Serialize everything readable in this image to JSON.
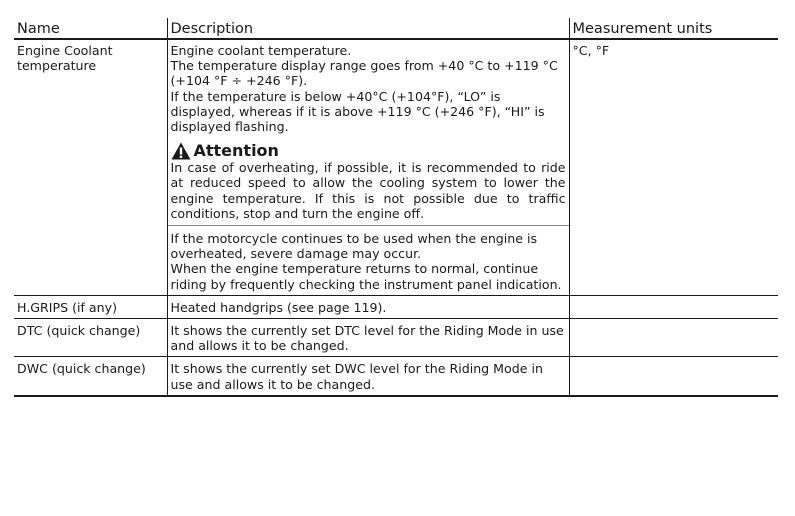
{
  "headers": {
    "name": "Name",
    "description": "Description",
    "units": "Measurement units"
  },
  "rows": [
    {
      "name": "Engine Coolant temperature",
      "desc_lines": [
        "Engine coolant temperature.",
        "The temperature display range goes from +40 °C to +119 °C (+104 °F ÷ +246 °F).",
        "If the temperature is below +40°C (+104°F), “LO” is displayed, whereas if it is above +119 °C (+246 °F), “HI” is displayed flashing."
      ],
      "attention_title": "Attention",
      "attention_text": "In case of overheating, if possible, it is recommended to ride at reduced speed to allow the cooling system to lower the engine temperature. If this is not possible due to traffic conditions, stop and turn the engine off.",
      "after_lines": [
        "If the motorcycle continues to be used when the engine is overheated, severe damage may occur.",
        "When the engine temperature returns to normal, continue riding by frequently checking the instrument panel indication."
      ],
      "units": "°C, °F"
    },
    {
      "name": "H.GRIPS (if any)",
      "desc": "Heated handgrips (see page 119).",
      "units": ""
    },
    {
      "name": "DTC (quick change)",
      "desc": "It shows the currently set DTC level for the Riding Mode in use and allows it to be changed.",
      "units": ""
    },
    {
      "name": "DWC (quick change)",
      "desc": "It shows the currently set DWC level for the Riding Mode in use and allows it to be changed.",
      "units": ""
    }
  ],
  "icons": {
    "attention": "warning-triangle-icon"
  }
}
